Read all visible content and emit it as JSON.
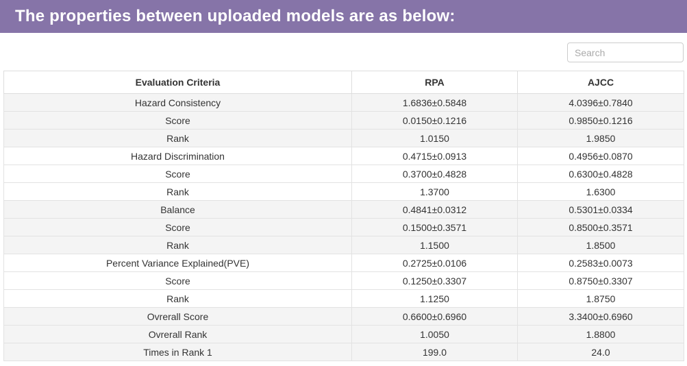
{
  "header": {
    "title": "The properties between uploaded models are as below:"
  },
  "search": {
    "placeholder": "Search"
  },
  "table": {
    "columns": [
      "Evaluation Criteria",
      "RPA",
      "AJCC"
    ],
    "rows": [
      {
        "criteria": "Hazard Consistency",
        "rpa": "1.6836±0.5848",
        "ajcc": "4.0396±0.7840"
      },
      {
        "criteria": "Score",
        "rpa": "0.0150±0.1216",
        "ajcc": "0.9850±0.1216"
      },
      {
        "criteria": "Rank",
        "rpa": "1.0150",
        "ajcc": "1.9850"
      },
      {
        "criteria": "Hazard Discrimination",
        "rpa": "0.4715±0.0913",
        "ajcc": "0.4956±0.0870"
      },
      {
        "criteria": "Score",
        "rpa": "0.3700±0.4828",
        "ajcc": "0.6300±0.4828"
      },
      {
        "criteria": "Rank",
        "rpa": "1.3700",
        "ajcc": "1.6300"
      },
      {
        "criteria": "Balance",
        "rpa": "0.4841±0.0312",
        "ajcc": "0.5301±0.0334"
      },
      {
        "criteria": "Score",
        "rpa": "0.1500±0.3571",
        "ajcc": "0.8500±0.3571"
      },
      {
        "criteria": "Rank",
        "rpa": "1.1500",
        "ajcc": "1.8500"
      },
      {
        "criteria": "Percent Variance Explained(PVE)",
        "rpa": "0.2725±0.0106",
        "ajcc": "0.2583±0.0073"
      },
      {
        "criteria": "Score",
        "rpa": "0.1250±0.3307",
        "ajcc": "0.8750±0.3307"
      },
      {
        "criteria": "Rank",
        "rpa": "1.1250",
        "ajcc": "1.8750"
      },
      {
        "criteria": "Ovrerall Score",
        "rpa": "0.6600±0.6960",
        "ajcc": "3.3400±0.6960"
      },
      {
        "criteria": "Ovrerall Rank",
        "rpa": "1.0050",
        "ajcc": "1.8800"
      },
      {
        "criteria": "Times in Rank 1",
        "rpa": "199.0",
        "ajcc": "24.0"
      }
    ]
  },
  "colors": {
    "titlebar_background": "#8674a8",
    "title_text": "#ffffff",
    "stripe_background": "#f4f4f4",
    "table_border": "#dddddd",
    "table_text": "#333333",
    "placeholder_text": "#aaaaaa"
  }
}
